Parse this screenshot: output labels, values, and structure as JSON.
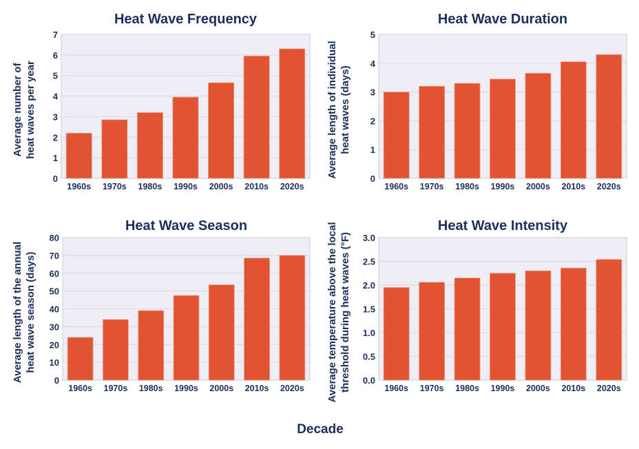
{
  "colors": {
    "bar": "#e05432",
    "plot_bg": "#efedf6",
    "grid": "#dcdae2",
    "text": "#1b2f5c"
  },
  "shared_xlabel": "Decade",
  "chart_data": [
    {
      "type": "bar",
      "title": "Heat Wave Frequency",
      "ylabel": [
        "Average number of",
        "heat waves per year"
      ],
      "categories": [
        "1960s",
        "1970s",
        "1980s",
        "1990s",
        "2000s",
        "2010s",
        "2020s"
      ],
      "values": [
        2.2,
        2.85,
        3.2,
        3.95,
        4.65,
        5.95,
        6.3
      ],
      "ylim": [
        0,
        7
      ],
      "yticks": [
        "0",
        "1",
        "2",
        "3",
        "4",
        "5",
        "6",
        "7"
      ],
      "grid": true
    },
    {
      "type": "bar",
      "title": "Heat Wave Duration",
      "ylabel": [
        "Average length of individual",
        "heat waves (days)"
      ],
      "categories": [
        "1960s",
        "1970s",
        "1980s",
        "1990s",
        "2000s",
        "2010s",
        "2020s"
      ],
      "values": [
        3.0,
        3.2,
        3.3,
        3.45,
        3.65,
        4.05,
        4.3
      ],
      "ylim": [
        0,
        5
      ],
      "yticks": [
        "0",
        "1",
        "2",
        "3",
        "4",
        "5"
      ],
      "grid": true
    },
    {
      "type": "bar",
      "title": "Heat Wave Season",
      "ylabel": [
        "Average length of the annual",
        "heat wave season (days)"
      ],
      "categories": [
        "1960s",
        "1970s",
        "1980s",
        "1990s",
        "2000s",
        "2010s",
        "2020s"
      ],
      "values": [
        24,
        34,
        39,
        47.5,
        53.5,
        68.5,
        70
      ],
      "ylim": [
        0,
        80
      ],
      "yticks": [
        "0",
        "10",
        "20",
        "30",
        "40",
        "50",
        "60",
        "70",
        "80"
      ],
      "grid": true
    },
    {
      "type": "bar",
      "title": "Heat Wave Intensity",
      "ylabel": [
        "Average temperature above the local",
        "threshold during heat waves (°F)"
      ],
      "categories": [
        "1960s",
        "1970s",
        "1980s",
        "1990s",
        "2000s",
        "2010s",
        "2020s"
      ],
      "values": [
        1.95,
        2.06,
        2.15,
        2.25,
        2.3,
        2.36,
        2.54
      ],
      "ylim": [
        0,
        3
      ],
      "yticks": [
        "0.0",
        "0.5",
        "1.0",
        "1.5",
        "2.0",
        "2.5",
        "3.0"
      ],
      "grid": true
    }
  ]
}
